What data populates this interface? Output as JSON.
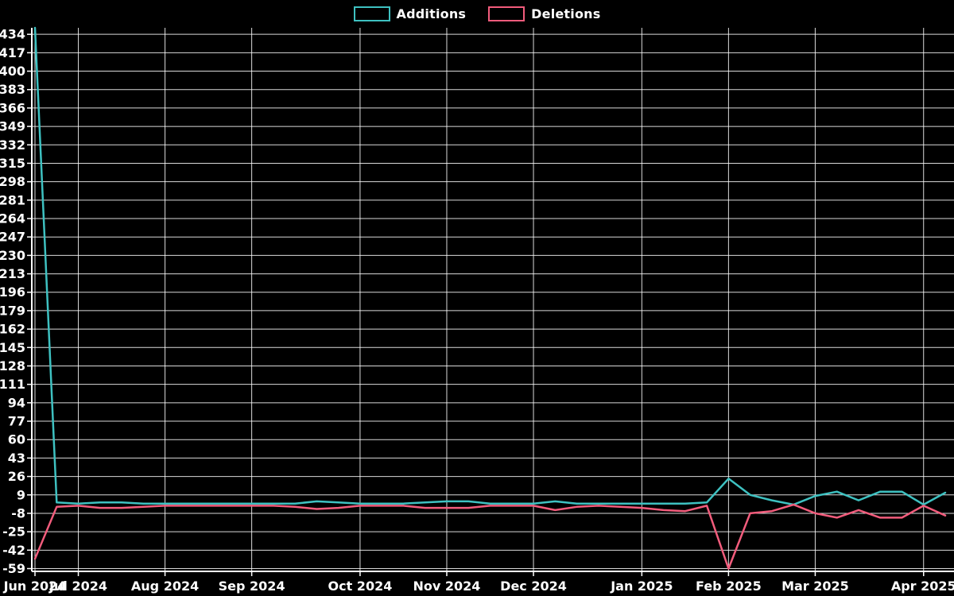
{
  "legend": {
    "items": [
      {
        "label": "Additions",
        "color": "#3EC1C1"
      },
      {
        "label": "Deletions",
        "color": "#F25C7C"
      }
    ]
  },
  "colors": {
    "background": "#000000",
    "grid": "#FFFFFF",
    "axis": "#FFFFFF",
    "text": "#FFFFFF",
    "additions": "#3EC1C1",
    "deletions": "#F25C7C"
  },
  "chart_data": {
    "type": "line",
    "title": "",
    "xlabel": "",
    "ylabel": "",
    "x_unit": "week_index",
    "x": [
      0,
      1,
      2,
      3,
      4,
      5,
      6,
      7,
      8,
      9,
      10,
      11,
      12,
      13,
      14,
      15,
      16,
      17,
      18,
      19,
      20,
      21,
      22,
      23,
      24,
      25,
      26,
      27,
      28,
      29,
      30,
      31,
      32,
      33,
      34,
      35,
      36,
      37,
      38,
      39,
      40,
      41,
      42
    ],
    "series": [
      {
        "name": "Additions",
        "color": "#3EC1C1",
        "values": [
          440,
          2,
          1,
          2,
          2,
          1,
          1,
          1,
          1,
          1,
          1,
          1,
          1,
          3,
          2,
          1,
          1,
          1,
          2,
          3,
          3,
          1,
          1,
          1,
          3,
          1,
          1,
          1,
          1,
          1,
          1,
          2,
          24,
          9,
          4,
          0,
          8,
          12,
          4,
          12,
          12,
          0,
          11
        ]
      },
      {
        "name": "Deletions",
        "color": "#F25C7C",
        "values": [
          -50,
          -2,
          -1,
          -3,
          -3,
          -2,
          -1,
          -1,
          -1,
          -1,
          -1,
          -1,
          -2,
          -4,
          -3,
          -1,
          -1,
          -1,
          -3,
          -3,
          -3,
          -1,
          -1,
          -1,
          -5,
          -2,
          -1,
          -2,
          -3,
          -5,
          -6,
          -1,
          -59,
          -8,
          -6,
          0,
          -8,
          -12,
          -5,
          -12,
          -12,
          -1,
          -10
        ]
      }
    ],
    "x_ticks": [
      {
        "index": 0,
        "label": "Jun 2024"
      },
      {
        "index": 2,
        "label": "Jul 2024"
      },
      {
        "index": 6,
        "label": "Aug 2024"
      },
      {
        "index": 10,
        "label": "Sep 2024"
      },
      {
        "index": 15,
        "label": "Oct 2024"
      },
      {
        "index": 19,
        "label": "Nov 2024"
      },
      {
        "index": 23,
        "label": "Dec 2024"
      },
      {
        "index": 28,
        "label": "Jan 2025"
      },
      {
        "index": 32,
        "label": "Feb 2025"
      },
      {
        "index": 36,
        "label": "Mar 2025"
      },
      {
        "index": 41,
        "label": "Apr 2025"
      }
    ],
    "y_ticks": [
      434,
      417,
      400,
      383,
      366,
      349,
      332,
      315,
      298,
      281,
      264,
      247,
      230,
      213,
      196,
      179,
      162,
      145,
      128,
      111,
      94,
      77,
      60,
      43,
      26,
      9,
      -8,
      -25,
      -42,
      -59
    ],
    "ylim": [
      -59,
      440
    ],
    "grid": true,
    "legend_position": "top-center"
  }
}
